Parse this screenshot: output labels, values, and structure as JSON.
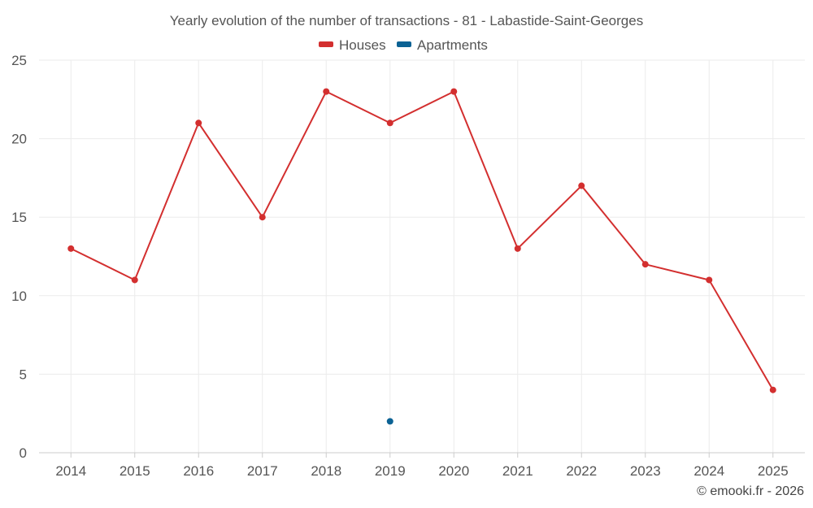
{
  "chart_data": {
    "type": "line",
    "title": "Yearly evolution of the number of transactions - 81 - Labastide-Saint-Georges",
    "categories": [
      "2014",
      "2015",
      "2016",
      "2017",
      "2018",
      "2019",
      "2020",
      "2021",
      "2022",
      "2023",
      "2024",
      "2025"
    ],
    "series": [
      {
        "name": "Houses",
        "color": "#d32f2f",
        "values": [
          13,
          11,
          21,
          15,
          23,
          21,
          23,
          13,
          17,
          12,
          11,
          4
        ]
      },
      {
        "name": "Apartments",
        "color": "#0b6294",
        "values": [
          null,
          null,
          null,
          null,
          null,
          2,
          null,
          null,
          null,
          null,
          null,
          null
        ]
      }
    ],
    "ylim": [
      0,
      25
    ],
    "yticks": [
      "0",
      "5",
      "10",
      "15",
      "20",
      "25"
    ],
    "grid": true,
    "legend_position": "top-center",
    "xlabel": "",
    "ylabel": ""
  },
  "credit": "© emooki.fr - 2026"
}
